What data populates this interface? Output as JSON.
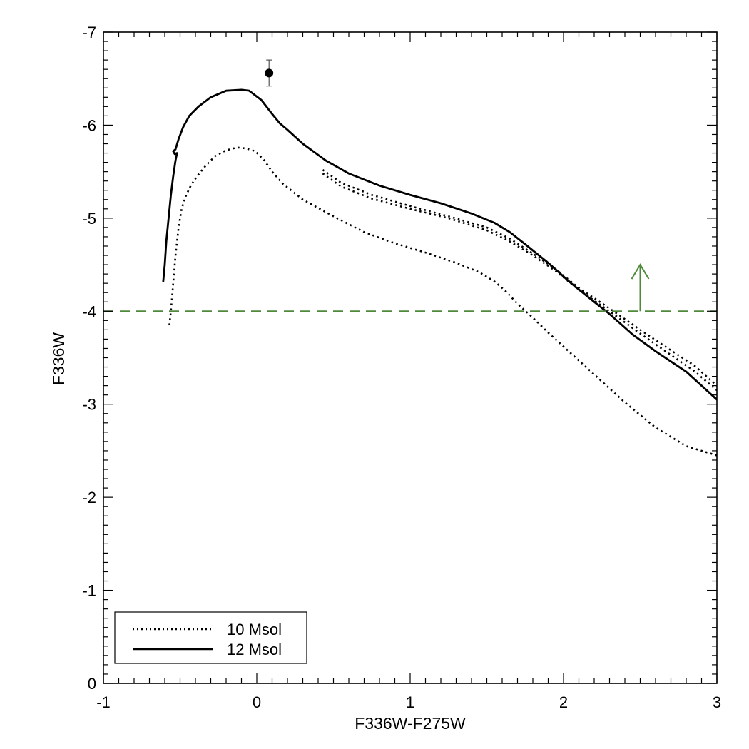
{
  "chart_data": {
    "type": "line",
    "title": "",
    "xlabel": "F336W-F275W",
    "ylabel": "F336W",
    "xlim": [
      -1,
      3
    ],
    "ylim": [
      0,
      -7
    ],
    "y_axis_inverted": true,
    "grid": false,
    "x_ticks": [
      -1,
      0,
      1,
      2,
      3
    ],
    "x_tick_labels": [
      "-1",
      "0",
      "1",
      "2",
      "3"
    ],
    "y_ticks": [
      0,
      -1,
      -2,
      -3,
      -4,
      -5,
      -6,
      -7
    ],
    "y_tick_labels": [
      "0",
      "-1",
      "-2",
      "-3",
      "-4",
      "-5",
      "-6",
      "-7"
    ],
    "legend": {
      "position": "bottom-left",
      "entries": [
        {
          "label": "10 Msol",
          "style": "dotted"
        },
        {
          "label": "12 Msol",
          "style": "solid"
        }
      ]
    },
    "series": [
      {
        "name": "10 Msol",
        "style": "dotted",
        "color": "#000000",
        "segments": [
          [
            [
              -0.57,
              -3.85
            ],
            [
              -0.56,
              -4.0
            ],
            [
              -0.545,
              -4.3
            ],
            [
              -0.53,
              -4.6
            ],
            [
              -0.51,
              -4.9
            ],
            [
              -0.49,
              -5.1
            ],
            [
              -0.46,
              -5.25
            ],
            [
              -0.43,
              -5.35
            ],
            [
              -0.39,
              -5.45
            ],
            [
              -0.33,
              -5.57
            ],
            [
              -0.27,
              -5.67
            ],
            [
              -0.2,
              -5.73
            ],
            [
              -0.13,
              -5.76
            ],
            [
              -0.07,
              -5.75
            ],
            [
              -0.01,
              -5.72
            ],
            [
              0.05,
              -5.62
            ],
            [
              0.1,
              -5.5
            ],
            [
              0.17,
              -5.37
            ],
            [
              0.3,
              -5.2
            ],
            [
              0.5,
              -5.02
            ],
            [
              0.7,
              -4.85
            ],
            [
              0.9,
              -4.73
            ],
            [
              1.1,
              -4.63
            ],
            [
              1.3,
              -4.52
            ],
            [
              1.45,
              -4.42
            ],
            [
              1.55,
              -4.32
            ],
            [
              1.62,
              -4.22
            ],
            [
              1.7,
              -4.08
            ],
            [
              1.8,
              -3.93
            ],
            [
              1.9,
              -3.77
            ],
            [
              2.0,
              -3.62
            ],
            [
              2.2,
              -3.32
            ],
            [
              2.4,
              -3.02
            ],
            [
              2.6,
              -2.75
            ],
            [
              2.8,
              -2.55
            ],
            [
              3.0,
              -2.45
            ]
          ],
          [
            [
              0.43,
              -5.52
            ],
            [
              0.55,
              -5.38
            ],
            [
              0.75,
              -5.25
            ],
            [
              1.0,
              -5.13
            ],
            [
              1.25,
              -5.02
            ],
            [
              1.5,
              -4.9
            ],
            [
              1.65,
              -4.78
            ],
            [
              1.8,
              -4.62
            ],
            [
              1.95,
              -4.45
            ],
            [
              2.1,
              -4.25
            ],
            [
              2.3,
              -4.03
            ],
            [
              2.5,
              -3.8
            ],
            [
              2.7,
              -3.58
            ],
            [
              2.85,
              -3.42
            ],
            [
              3.0,
              -3.2
            ]
          ],
          [
            [
              0.43,
              -5.48
            ],
            [
              0.55,
              -5.34
            ],
            [
              0.75,
              -5.21
            ],
            [
              1.0,
              -5.1
            ],
            [
              1.25,
              -5.0
            ],
            [
              1.5,
              -4.87
            ],
            [
              1.65,
              -4.75
            ],
            [
              1.8,
              -4.6
            ],
            [
              1.95,
              -4.43
            ],
            [
              2.1,
              -4.23
            ],
            [
              2.3,
              -4.0
            ],
            [
              2.5,
              -3.76
            ],
            [
              2.7,
              -3.53
            ],
            [
              2.85,
              -3.36
            ],
            [
              3.0,
              -3.15
            ]
          ]
        ]
      },
      {
        "name": "12 Msol",
        "style": "solid",
        "color": "#000000",
        "segments": [
          [
            [
              -0.61,
              -4.32
            ],
            [
              -0.6,
              -4.5
            ],
            [
              -0.59,
              -4.75
            ],
            [
              -0.575,
              -5.0
            ],
            [
              -0.56,
              -5.25
            ],
            [
              -0.545,
              -5.45
            ],
            [
              -0.53,
              -5.62
            ],
            [
              -0.52,
              -5.7
            ],
            [
              -0.535,
              -5.69
            ],
            [
              -0.545,
              -5.72
            ],
            [
              -0.53,
              -5.74
            ],
            [
              -0.51,
              -5.85
            ],
            [
              -0.48,
              -5.98
            ],
            [
              -0.44,
              -6.1
            ],
            [
              -0.38,
              -6.2
            ],
            [
              -0.3,
              -6.3
            ],
            [
              -0.2,
              -6.37
            ],
            [
              -0.1,
              -6.38
            ],
            [
              -0.05,
              -6.37
            ],
            [
              0.03,
              -6.27
            ],
            [
              0.1,
              -6.12
            ],
            [
              0.15,
              -6.02
            ],
            [
              0.2,
              -5.95
            ],
            [
              0.3,
              -5.8
            ],
            [
              0.45,
              -5.62
            ],
            [
              0.6,
              -5.48
            ],
            [
              0.8,
              -5.35
            ],
            [
              1.0,
              -5.25
            ],
            [
              1.2,
              -5.16
            ],
            [
              1.4,
              -5.05
            ],
            [
              1.55,
              -4.95
            ],
            [
              1.65,
              -4.85
            ],
            [
              1.75,
              -4.72
            ],
            [
              1.9,
              -4.52
            ],
            [
              2.05,
              -4.3
            ],
            [
              2.2,
              -4.1
            ],
            [
              2.3,
              -3.97
            ],
            [
              2.45,
              -3.75
            ],
            [
              2.6,
              -3.57
            ],
            [
              2.8,
              -3.35
            ],
            [
              3.0,
              -3.05
            ]
          ]
        ]
      }
    ],
    "points": [
      {
        "x": 0.08,
        "y": -6.56,
        "yerr": 0.14,
        "color": "#000000"
      }
    ],
    "reference_line": {
      "y": -4,
      "style": "dashed",
      "color": "#4f8a3c"
    },
    "arrow": {
      "x": 2.5,
      "from_y": -4.0,
      "to_y": -4.5,
      "direction": "up",
      "color": "#4f8a3c"
    }
  }
}
